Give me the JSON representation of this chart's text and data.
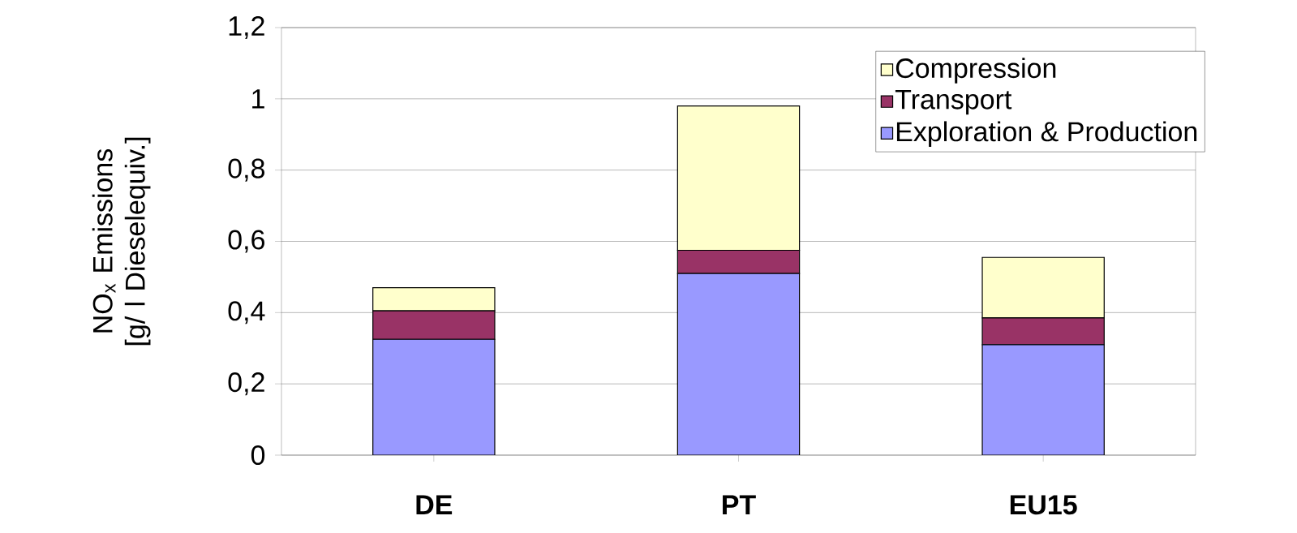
{
  "chart_data": {
    "type": "bar",
    "stacked": true,
    "categories": [
      "DE",
      "PT",
      "EU15"
    ],
    "ylabel": "NO$_{x}$ Emissions [g/ l Dieselequiv.]",
    "series": [
      {
        "name": "Exploration & Production",
        "color": "#9999ff",
        "values": [
          0.325,
          0.51,
          0.31
        ]
      },
      {
        "name": "Transport",
        "color": "#993366",
        "values": [
          0.08,
          0.065,
          0.075
        ]
      },
      {
        "name": "Compression",
        "color": "#ffffcc",
        "values": [
          0.065,
          0.405,
          0.17
        ]
      }
    ],
    "ylim": [
      0,
      1.2
    ],
    "yticks": [
      0,
      {
        "value": 0.2,
        "label": "0,2"
      },
      {
        "value": 0.4,
        "label": "0,4"
      },
      {
        "value": 0.6,
        "label": "0,6"
      },
      {
        "value": 0.8,
        "label": "0,8"
      },
      1,
      {
        "value": 1.2,
        "label": "1,2"
      }
    ],
    "grid": "y",
    "legend": "top right"
  }
}
